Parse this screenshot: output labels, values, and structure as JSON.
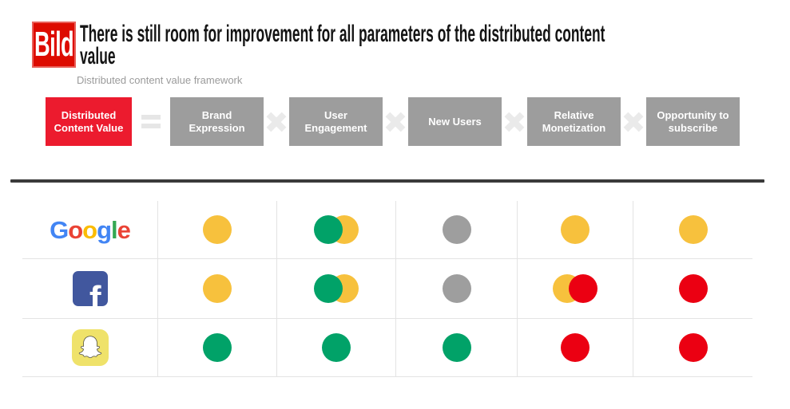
{
  "logo": {
    "text": "Bild",
    "color": "#DD0B00"
  },
  "header": {
    "title_line1": "There is still room for improvement for all parameters of the distributed content",
    "title_line2": "value",
    "subtitle": "Distributed content value framework"
  },
  "framework": {
    "result_box": {
      "label": "Distributed Content Value",
      "color": "#EC1B2E"
    },
    "equals": "=",
    "times": "×",
    "factor_color": "#9D9D9D",
    "factors": [
      "Brand Expression",
      "User Engagement",
      "New Users",
      "Relative Monetization",
      "Opportunity to subscribe"
    ]
  },
  "matrix": {
    "dot_colors": {
      "yellow": "#F7C13D",
      "green": "#01A268",
      "red": "#EB0012",
      "gray": "#9E9E9E"
    },
    "rows": [
      {
        "platform": "Google",
        "cells": [
          [
            {
              "c": "yellow"
            }
          ],
          [
            {
              "c": "green",
              "top": true
            },
            {
              "c": "yellow"
            }
          ],
          [
            {
              "c": "gray"
            }
          ],
          [
            {
              "c": "yellow"
            }
          ],
          [
            {
              "c": "yellow"
            }
          ]
        ]
      },
      {
        "platform": "Facebook",
        "cells": [
          [
            {
              "c": "yellow"
            }
          ],
          [
            {
              "c": "green",
              "top": true
            },
            {
              "c": "yellow"
            }
          ],
          [
            {
              "c": "gray"
            }
          ],
          [
            {
              "c": "yellow"
            },
            {
              "c": "red",
              "top": true
            }
          ],
          [
            {
              "c": "red"
            }
          ]
        ]
      },
      {
        "platform": "Snapchat",
        "cells": [
          [
            {
              "c": "green"
            }
          ],
          [
            {
              "c": "green"
            }
          ],
          [
            {
              "c": "green"
            }
          ],
          [
            {
              "c": "red"
            }
          ],
          [
            {
              "c": "red"
            }
          ]
        ]
      }
    ]
  },
  "google_letters": [
    {
      "char": "G",
      "color": "#4285F4"
    },
    {
      "char": "o",
      "color": "#EA4335"
    },
    {
      "char": "o",
      "color": "#FBBC05"
    },
    {
      "char": "g",
      "color": "#4285F4"
    },
    {
      "char": "l",
      "color": "#34A853"
    },
    {
      "char": "e",
      "color": "#EA4335"
    }
  ],
  "facebook_letter": "f"
}
